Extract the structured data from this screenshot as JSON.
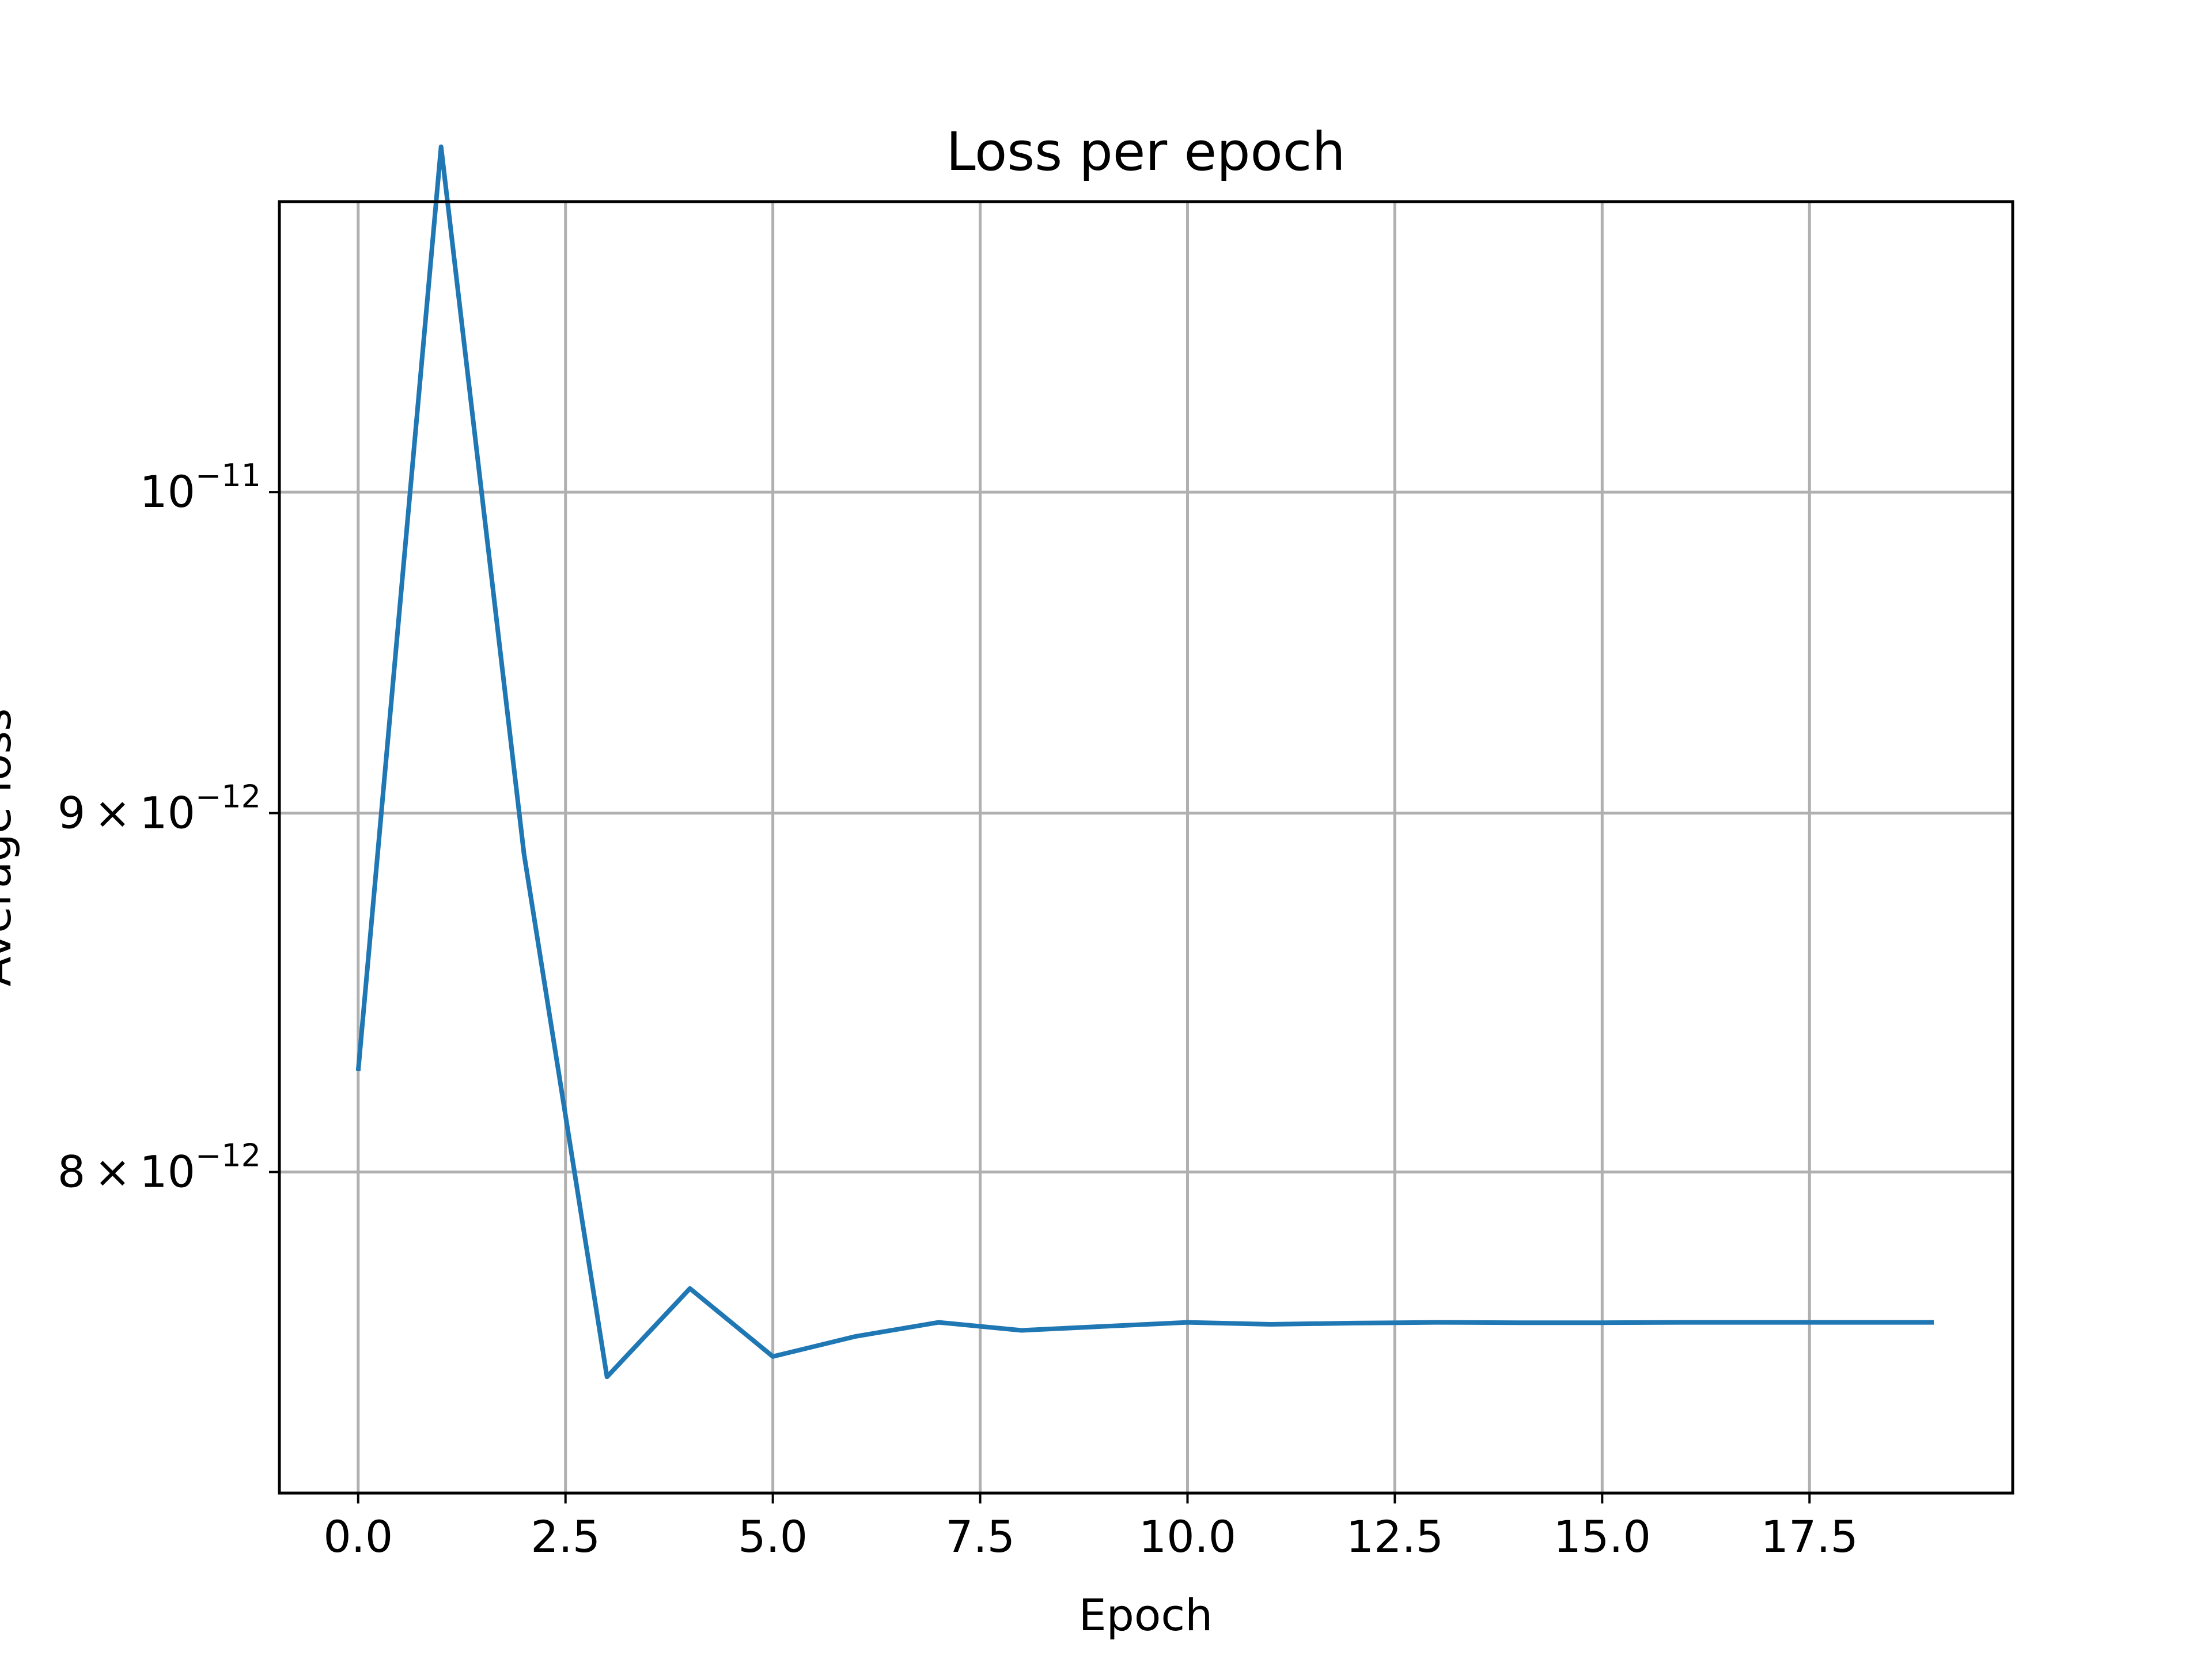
{
  "chart_data": {
    "type": "line",
    "title": "Loss per epoch",
    "xlabel": "Epoch",
    "ylabel": "Average loss",
    "yscale": "log",
    "grid": true,
    "xlim": [
      -0.95,
      19.95
    ],
    "ylim": [
      7.2e-12,
      1.1e-11
    ],
    "x_ticks": [
      {
        "value": 0.0,
        "label": "0.0"
      },
      {
        "value": 2.5,
        "label": "2.5"
      },
      {
        "value": 5.0,
        "label": "5.0"
      },
      {
        "value": 7.5,
        "label": "7.5"
      },
      {
        "value": 10.0,
        "label": "10.0"
      },
      {
        "value": 12.5,
        "label": "12.5"
      },
      {
        "value": 15.0,
        "label": "15.0"
      },
      {
        "value": 17.5,
        "label": "17.5"
      }
    ],
    "y_ticks": [
      {
        "value": 8e-12,
        "mantissa": "8 × 10",
        "exponent": "−12"
      },
      {
        "value": 9e-12,
        "mantissa": "9 × 10",
        "exponent": "−12"
      },
      {
        "value": 1e-11,
        "mantissa": "10",
        "exponent": "−11"
      }
    ],
    "series": [
      {
        "color": "#1f77b4",
        "x": [
          0,
          1,
          2,
          3,
          4,
          5,
          6,
          7,
          8,
          9,
          10,
          11,
          12,
          13,
          14,
          15,
          16,
          17,
          18,
          19
        ],
        "y": [
          8.27e-12,
          1.12e-11,
          8.88e-12,
          7.48e-12,
          7.7e-12,
          7.53e-12,
          7.58e-12,
          7.615e-12,
          7.595e-12,
          7.605e-12,
          7.615e-12,
          7.61e-12,
          7.613e-12,
          7.615e-12,
          7.614e-12,
          7.614e-12,
          7.615e-12,
          7.615e-12,
          7.615e-12,
          7.615e-12
        ]
      }
    ]
  }
}
